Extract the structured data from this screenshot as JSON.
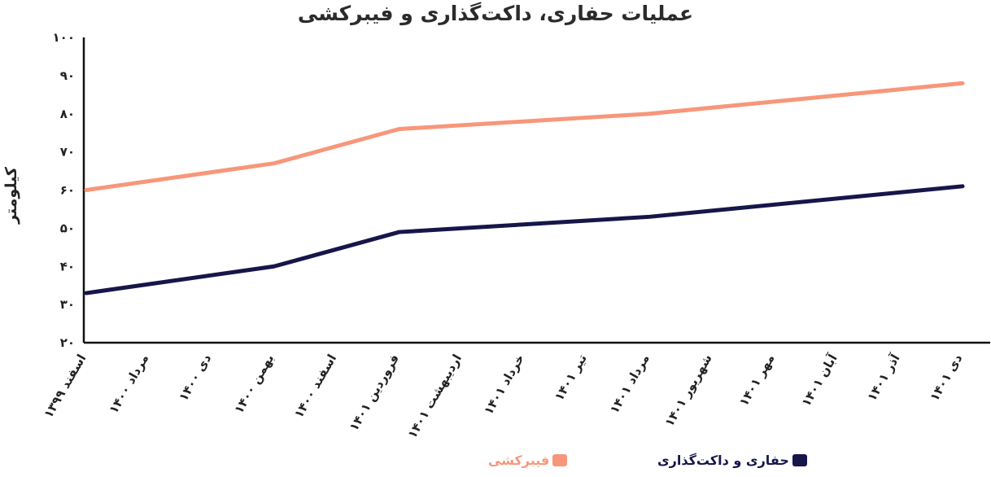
{
  "chart_data": {
    "type": "line",
    "title": "عملیات حفاری، داکت‌گذاری و فیبرکشی",
    "xlabel": "",
    "ylabel": "کیلومتر",
    "ylim": [
      20,
      100
    ],
    "yticks": [
      20,
      30,
      40,
      50,
      60,
      70,
      80,
      90,
      100
    ],
    "ytick_labels": [
      "۲۰",
      "۳۰",
      "۴۰",
      "۵۰",
      "۶۰",
      "۷۰",
      "۸۰",
      "۹۰",
      "۱۰۰"
    ],
    "categories": [
      "اسفند ۱۳۹۹",
      "مرداد ۱۴۰۰",
      "دی ۱۴۰۰",
      "بهمن ۱۴۰۰",
      "اسفند ۱۴۰۰",
      "فروردین ۱۴۰۱",
      "اردیبهشت ۱۴۰۱",
      "خرداد ۱۴۰۱",
      "تیر ۱۴۰۱",
      "مرداد ۱۴۰۱",
      "شهریور ۱۴۰۱",
      "مهر ۱۴۰۱",
      "آبان ۱۴۰۱",
      "آذر ۱۴۰۱",
      "دی ۱۴۰۱"
    ],
    "grid": false,
    "legend_position": "bottom",
    "series": [
      {
        "name": "فیبرکشی",
        "color": "#f7977a",
        "points": [
          {
            "category": "اسفند ۱۳۹۹",
            "value": 60
          },
          {
            "category": "بهمن ۱۴۰۰",
            "value": 67
          },
          {
            "category": "فروردین ۱۴۰۱",
            "value": 76
          },
          {
            "category": "مرداد ۱۴۰۱",
            "value": 80
          },
          {
            "category": "دی ۱۴۰۱",
            "value": 88
          }
        ]
      },
      {
        "name": "حفاری و داکت‌گذاری",
        "color": "#16164a",
        "points": [
          {
            "category": "اسفند ۱۳۹۹",
            "value": 33
          },
          {
            "category": "بهمن ۱۴۰۰",
            "value": 40
          },
          {
            "category": "فروردین ۱۴۰۱",
            "value": 49
          },
          {
            "category": "مرداد ۱۴۰۱",
            "value": 53
          },
          {
            "category": "دی ۱۴۰۱",
            "value": 61
          }
        ]
      }
    ]
  }
}
